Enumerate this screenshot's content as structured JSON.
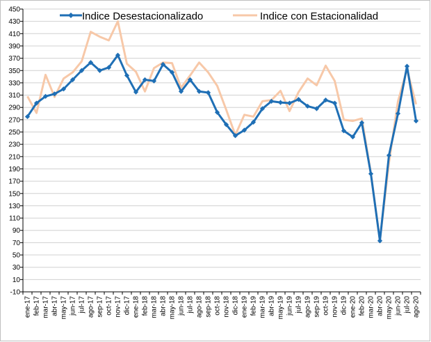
{
  "chart_data": {
    "type": "line",
    "title": "",
    "xlabel": "",
    "ylabel": "",
    "ylim": [
      -10,
      450
    ],
    "y_step": 20,
    "grid": true,
    "legend_position": "top",
    "x": [
      "ene-17",
      "feb-17",
      "mar-17",
      "abr-17",
      "may-17",
      "jun-17",
      "jul-17",
      "ago-17",
      "sep-17",
      "oct-17",
      "nov-17",
      "dic-17",
      "ene-18",
      "feb-18",
      "mar-18",
      "abr-18",
      "may-18",
      "jun-18",
      "jul-18",
      "ago-18",
      "sep-18",
      "oct-18",
      "nov-18",
      "dic-18",
      "ene-19",
      "feb-19",
      "mar-19",
      "abr-19",
      "may-19",
      "jun-19",
      "jul-19",
      "ago-19",
      "sep-19",
      "oct-19",
      "nov-19",
      "dic-19",
      "ene-20",
      "feb-20",
      "mar-20",
      "abr-20",
      "may-20",
      "jun-20",
      "jul-20",
      "ago-20"
    ],
    "series": [
      {
        "name": "Indice Desestacionalizado",
        "color": "#1f6fb5",
        "values": [
          275,
          297,
          308,
          312,
          320,
          335,
          350,
          363,
          350,
          355,
          375,
          342,
          315,
          335,
          333,
          360,
          347,
          316,
          335,
          316,
          314,
          282,
          262,
          244,
          253,
          266,
          288,
          300,
          298,
          297,
          303,
          292,
          288,
          302,
          297,
          252,
          242,
          265,
          182,
          73,
          212,
          280,
          357,
          268
        ]
      },
      {
        "name": "Indice con Estacionalidad",
        "color": "#f7c8a8",
        "values": [
          308,
          281,
          343,
          307,
          337,
          347,
          365,
          413,
          405,
          399,
          430,
          361,
          348,
          316,
          354,
          363,
          362,
          322,
          342,
          363,
          347,
          325,
          286,
          245,
          278,
          275,
          300,
          302,
          317,
          284,
          315,
          337,
          326,
          358,
          333,
          270,
          268,
          272,
          183,
          74,
          200,
          300,
          352,
          295
        ]
      }
    ]
  }
}
